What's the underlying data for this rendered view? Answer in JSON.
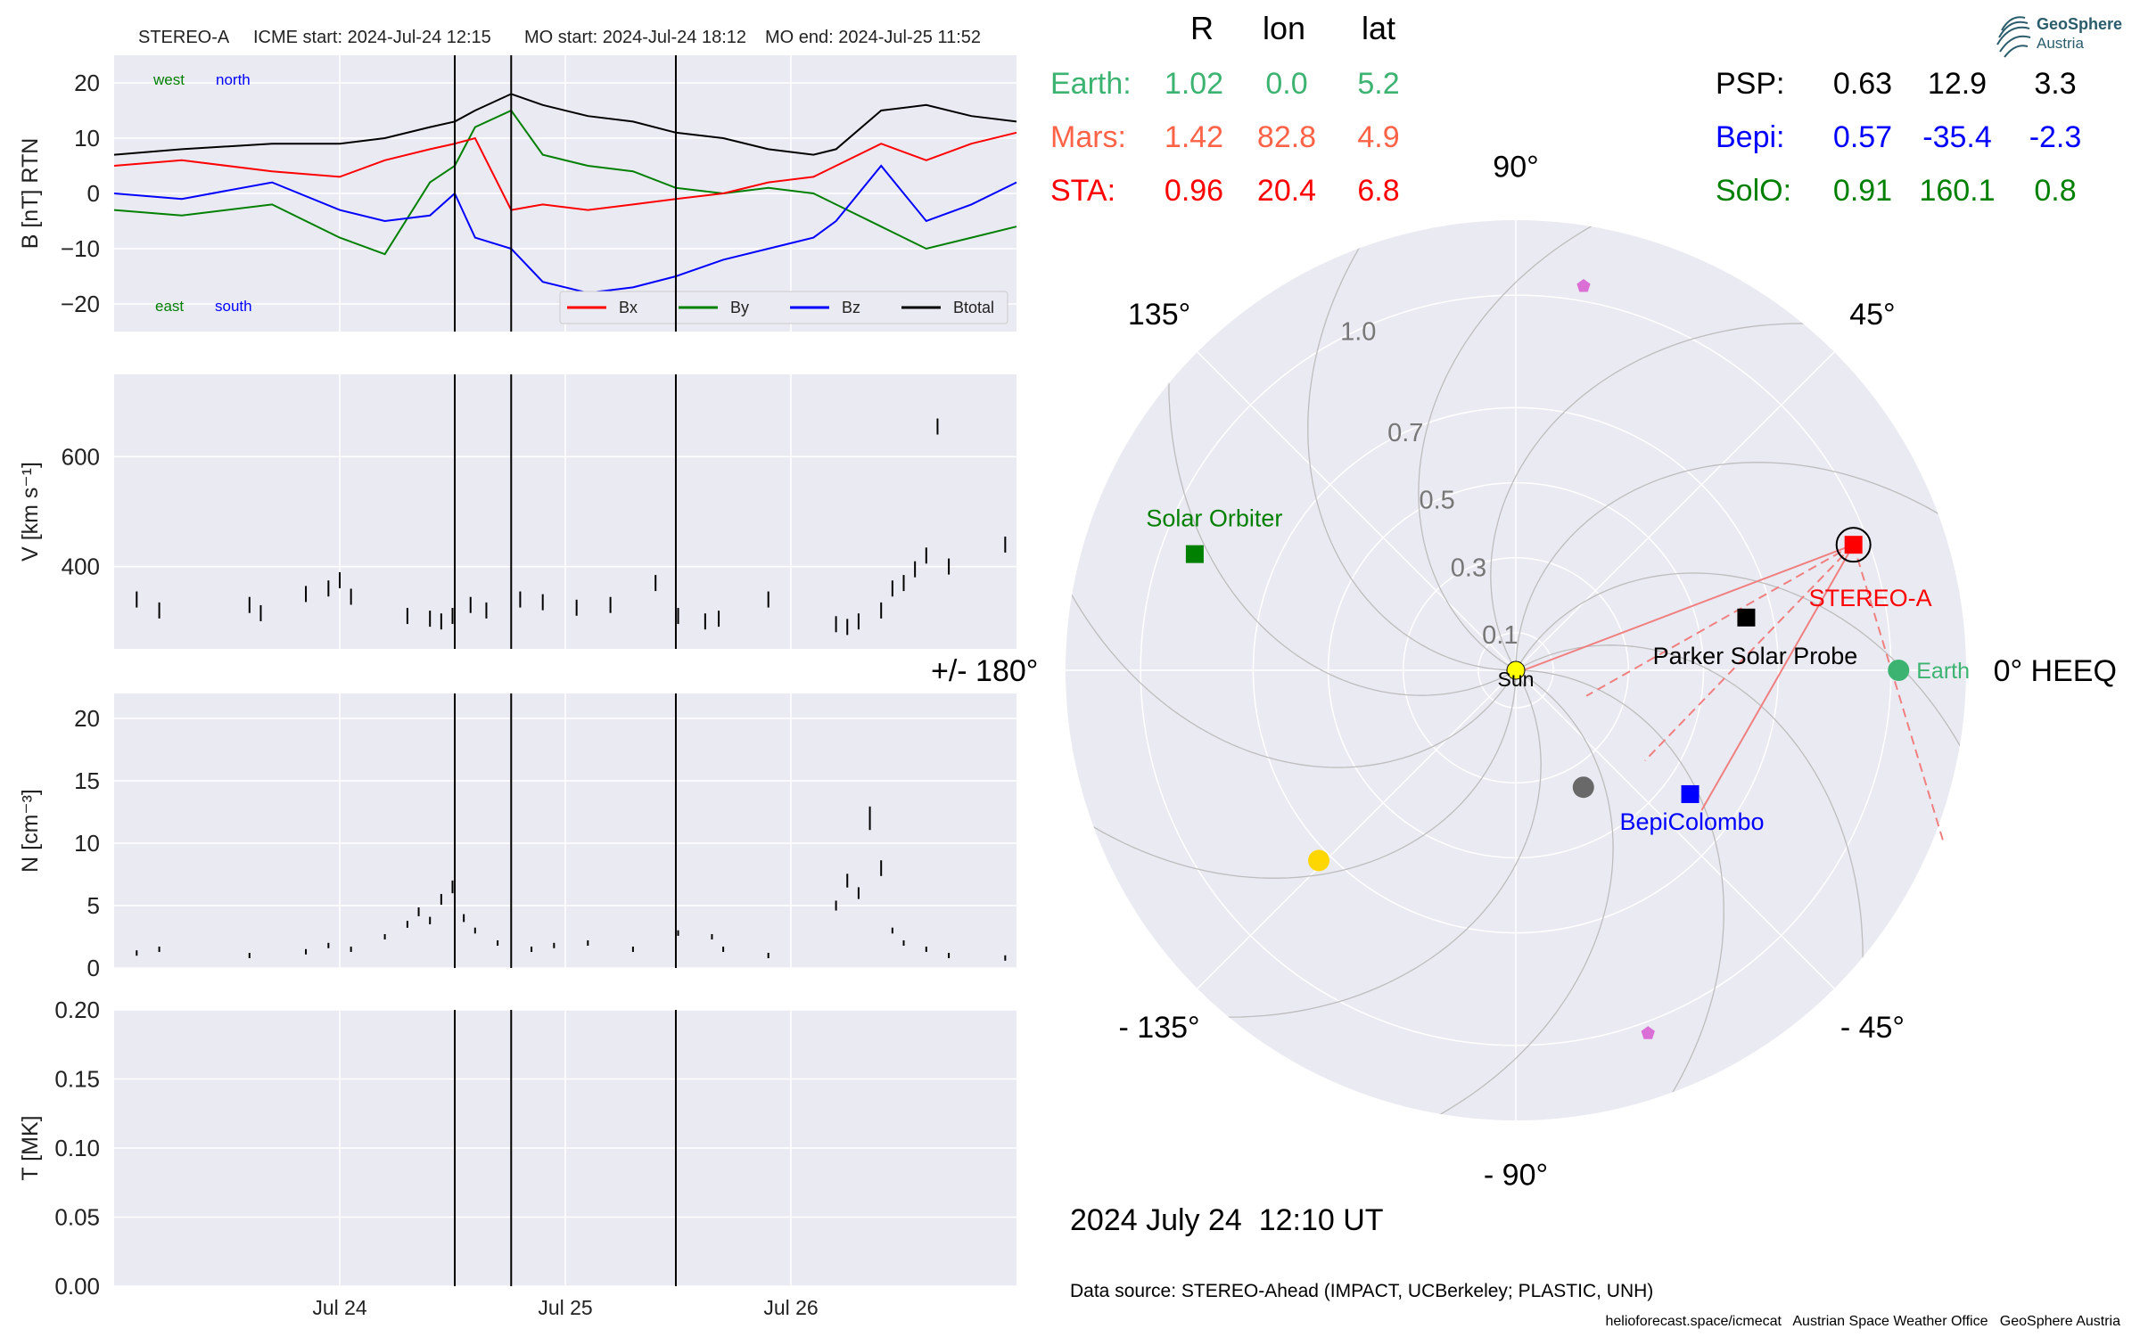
{
  "header": {
    "spacecraft": "STEREO-A",
    "icme_start": "ICME start: 2024-Jul-24 12:15",
    "mo_start": "MO start: 2024-Jul-24 18:12",
    "mo_end": "MO end: 2024-Jul-25 11:52"
  },
  "colors": {
    "bx": "#ff0000",
    "by": "#008000",
    "bz": "#0000ff",
    "btotal": "#000000",
    "panel_bg": "#eaeaf2",
    "grid": "#ffffff",
    "earth": "#3cb371",
    "mars": "#ff6347",
    "sta": "#ff0000",
    "psp": "#000000",
    "bepi": "#0000ff",
    "solo": "#008000",
    "sun": "#ffff00",
    "mercury": "#696969",
    "venus": "#ffd700",
    "pentagon": "#da70d6"
  },
  "chart_data": [
    {
      "type": "line",
      "panel": "magnetic field",
      "ylabel": "B [nT] RTN",
      "ylim": [
        -25,
        25
      ],
      "yticks": [
        "20",
        "10",
        "0",
        "−10",
        "−20"
      ],
      "ytick_values": [
        20,
        10,
        0,
        -10,
        -20
      ],
      "xlim_days": [
        23.0,
        27.0
      ],
      "xticks": [
        "Jul 24",
        "Jul 25",
        "Jul 26"
      ],
      "xtick_days": [
        24,
        25,
        26
      ],
      "event_lines_days": [
        24.51,
        24.76,
        25.49
      ],
      "annotations": {
        "west": "west",
        "north": "north",
        "east": "east",
        "south": "south"
      },
      "legend": [
        "Bx",
        "By",
        "Bz",
        "Btotal"
      ],
      "legend_position": "lower-right",
      "series": [
        {
          "name": "Btotal",
          "x": [
            23.0,
            23.3,
            23.7,
            24.0,
            24.2,
            24.4,
            24.51,
            24.6,
            24.76,
            24.9,
            25.1,
            25.3,
            25.49,
            25.7,
            25.9,
            26.1,
            26.2,
            26.4,
            26.6,
            26.8,
            27.0
          ],
          "y": [
            7,
            8,
            9,
            9,
            10,
            12,
            13,
            15,
            18,
            16,
            14,
            13,
            11,
            10,
            8,
            7,
            8,
            15,
            16,
            14,
            13
          ]
        },
        {
          "name": "Bx",
          "x": [
            23.0,
            23.3,
            23.7,
            24.0,
            24.2,
            24.4,
            24.51,
            24.6,
            24.76,
            24.9,
            25.1,
            25.3,
            25.49,
            25.7,
            25.9,
            26.1,
            26.2,
            26.4,
            26.6,
            26.8,
            27.0
          ],
          "y": [
            5,
            6,
            4,
            3,
            6,
            8,
            9,
            10,
            -3,
            -2,
            -3,
            -2,
            -1,
            0,
            2,
            3,
            5,
            9,
            6,
            9,
            11
          ]
        },
        {
          "name": "By",
          "x": [
            23.0,
            23.3,
            23.7,
            24.0,
            24.2,
            24.4,
            24.51,
            24.6,
            24.76,
            24.9,
            25.1,
            25.3,
            25.49,
            25.7,
            25.9,
            26.1,
            26.2,
            26.4,
            26.6,
            26.8,
            27.0
          ],
          "y": [
            -3,
            -4,
            -2,
            -8,
            -11,
            2,
            5,
            12,
            15,
            7,
            5,
            4,
            1,
            0,
            1,
            0,
            -2,
            -6,
            -10,
            -8,
            -6
          ]
        },
        {
          "name": "Bz",
          "x": [
            23.0,
            23.3,
            23.7,
            24.0,
            24.2,
            24.4,
            24.51,
            24.6,
            24.76,
            24.9,
            25.1,
            25.3,
            25.49,
            25.7,
            25.9,
            26.1,
            26.2,
            26.4,
            26.6,
            26.8,
            27.0
          ],
          "y": [
            0,
            -1,
            2,
            -3,
            -5,
            -4,
            0,
            -8,
            -10,
            -16,
            -18,
            -17,
            -15,
            -12,
            -10,
            -8,
            -5,
            5,
            -5,
            -2,
            2
          ]
        }
      ]
    },
    {
      "type": "scatter",
      "panel": "speed",
      "ylabel": "V [km s⁻¹]",
      "ylim": [
        250,
        750
      ],
      "yticks": [
        "600",
        "400"
      ],
      "ytick_values": [
        600,
        400
      ],
      "x": [
        23.1,
        23.2,
        23.6,
        23.65,
        23.85,
        23.95,
        24.0,
        24.05,
        24.3,
        24.4,
        24.45,
        24.5,
        24.58,
        24.65,
        24.8,
        24.9,
        25.05,
        25.2,
        25.4,
        25.5,
        25.62,
        25.68,
        25.9,
        26.2,
        26.25,
        26.3,
        26.4,
        26.45,
        26.5,
        26.55,
        26.6,
        26.65,
        26.7,
        26.95
      ],
      "y": [
        340,
        320,
        330,
        315,
        350,
        360,
        375,
        345,
        310,
        305,
        300,
        310,
        330,
        320,
        340,
        335,
        325,
        330,
        370,
        310,
        300,
        305,
        340,
        295,
        290,
        300,
        320,
        360,
        370,
        395,
        420,
        655,
        400,
        440
      ]
    },
    {
      "type": "scatter",
      "panel": "density",
      "ylabel": "N [cm⁻³]",
      "ylim": [
        0,
        22
      ],
      "yticks": [
        "20",
        "15",
        "10",
        "5",
        "0"
      ],
      "ytick_values": [
        20,
        15,
        10,
        5,
        0
      ],
      "x": [
        23.1,
        23.2,
        23.6,
        23.85,
        23.95,
        24.05,
        24.2,
        24.3,
        24.35,
        24.4,
        24.45,
        24.5,
        24.55,
        24.6,
        24.7,
        24.85,
        24.95,
        25.1,
        25.3,
        25.5,
        25.65,
        25.7,
        25.9,
        26.2,
        26.25,
        26.3,
        26.35,
        26.4,
        26.45,
        26.5,
        26.6,
        26.7,
        26.95
      ],
      "y": [
        1.2,
        1.5,
        1.0,
        1.3,
        1.8,
        1.5,
        2.5,
        3.5,
        4.5,
        3.8,
        5.5,
        6.5,
        4.0,
        3.0,
        2.0,
        1.5,
        1.8,
        2.0,
        1.5,
        2.8,
        2.5,
        1.5,
        1.0,
        5.0,
        7.0,
        6.0,
        12.0,
        8.0,
        3.0,
        2.0,
        1.5,
        1.0,
        0.8
      ]
    },
    {
      "type": "line",
      "panel": "temperature",
      "ylabel": "T [MK]",
      "ylim": [
        0,
        0.2
      ],
      "yticks": [
        "0.20",
        "0.15",
        "0.10",
        "0.05",
        "0.00"
      ],
      "ytick_values": [
        0.2,
        0.15,
        0.1,
        0.05,
        0.0
      ],
      "series": []
    },
    {
      "type": "scatter",
      "panel": "polar position plot (HEEQ)",
      "rlim": [
        0,
        1.2
      ],
      "radial_labels": [
        "0.1",
        "0.3",
        "0.5",
        "0.7",
        "1.0"
      ],
      "radial_values": [
        0.1,
        0.3,
        0.5,
        0.7,
        1.0
      ],
      "angle_labels": [
        {
          "text": "0° HEEQ",
          "deg": 0
        },
        {
          "text": "45°",
          "deg": 45
        },
        {
          "text": "90°",
          "deg": 90
        },
        {
          "text": "135°",
          "deg": 135
        },
        {
          "text": "+/- 180°",
          "deg": 180
        },
        {
          "text": "- 135°",
          "deg": -135
        },
        {
          "text": "- 90°",
          "deg": -90
        },
        {
          "text": "- 45°",
          "deg": -45
        }
      ],
      "objects": [
        {
          "name": "Sun",
          "label": "Sun",
          "r": 0.0,
          "lon": 0.0,
          "marker": "circle",
          "color": "#ffff00"
        },
        {
          "name": "Earth",
          "label": "Earth",
          "r": 1.02,
          "lon": 0.0,
          "marker": "circle",
          "color": "#3cb371"
        },
        {
          "name": "STEREO-A",
          "label": "STEREO-A",
          "r": 0.96,
          "lon": 20.4,
          "marker": "square",
          "color": "#ff0000"
        },
        {
          "name": "Parker Solar Probe",
          "label": "Parker Solar Probe",
          "r": 0.63,
          "lon": 12.9,
          "marker": "square",
          "color": "#000000"
        },
        {
          "name": "BepiColombo",
          "label": "BepiColombo",
          "r": 0.57,
          "lon": -35.4,
          "marker": "square",
          "color": "#0000ff"
        },
        {
          "name": "Solar Orbiter",
          "label": "Solar Orbiter",
          "r": 0.91,
          "lon": 160.1,
          "marker": "square",
          "color": "#008000"
        },
        {
          "name": "Mercury",
          "label": "",
          "r": 0.36,
          "lon": -60.0,
          "marker": "circle",
          "color": "#696969"
        },
        {
          "name": "Venus",
          "label": "",
          "r": 0.73,
          "lon": -136.0,
          "marker": "circle",
          "color": "#ffd700"
        },
        {
          "name": "object-1",
          "label": "",
          "r": 1.04,
          "lon": 80.0,
          "marker": "pentagon",
          "color": "#da70d6"
        },
        {
          "name": "object-2",
          "label": "",
          "r": 1.03,
          "lon": -70.0,
          "marker": "pentagon",
          "color": "#da70d6"
        }
      ]
    }
  ],
  "positions_table": {
    "headers": [
      "R",
      "lon",
      "lat"
    ],
    "left_rows": [
      {
        "name": "Earth:",
        "R": "1.02",
        "lon": "0.0",
        "lat": "5.2",
        "color": "#3cb371"
      },
      {
        "name": "Mars:",
        "R": "1.42",
        "lon": "82.8",
        "lat": "4.9",
        "color": "#ff6347"
      },
      {
        "name": "STA:",
        "R": "0.96",
        "lon": "20.4",
        "lat": "6.8",
        "color": "#ff0000"
      }
    ],
    "right_rows": [
      {
        "name": "PSP:",
        "R": "0.63",
        "lon": "12.9",
        "lat": "3.3",
        "color": "#000000"
      },
      {
        "name": "Bepi:",
        "R": "0.57",
        "lon": "-35.4",
        "lat": "-2.3",
        "color": "#0000ff"
      },
      {
        "name": "SolO:",
        "R": "0.91",
        "lon": "160.1",
        "lat": "0.8",
        "color": "#008000"
      }
    ]
  },
  "logo": {
    "line1": "GeoSphere",
    "line2": "Austria"
  },
  "footer": {
    "timestamp": "2024 July 24  12:10 UT",
    "data_source": "Data source: STEREO-Ahead (IMPACT, UCBerkeley; PLASTIC, UNH)",
    "credits": "helioforecast.space/icmecat   Austrian Space Weather Office   GeoSphere Austria"
  }
}
